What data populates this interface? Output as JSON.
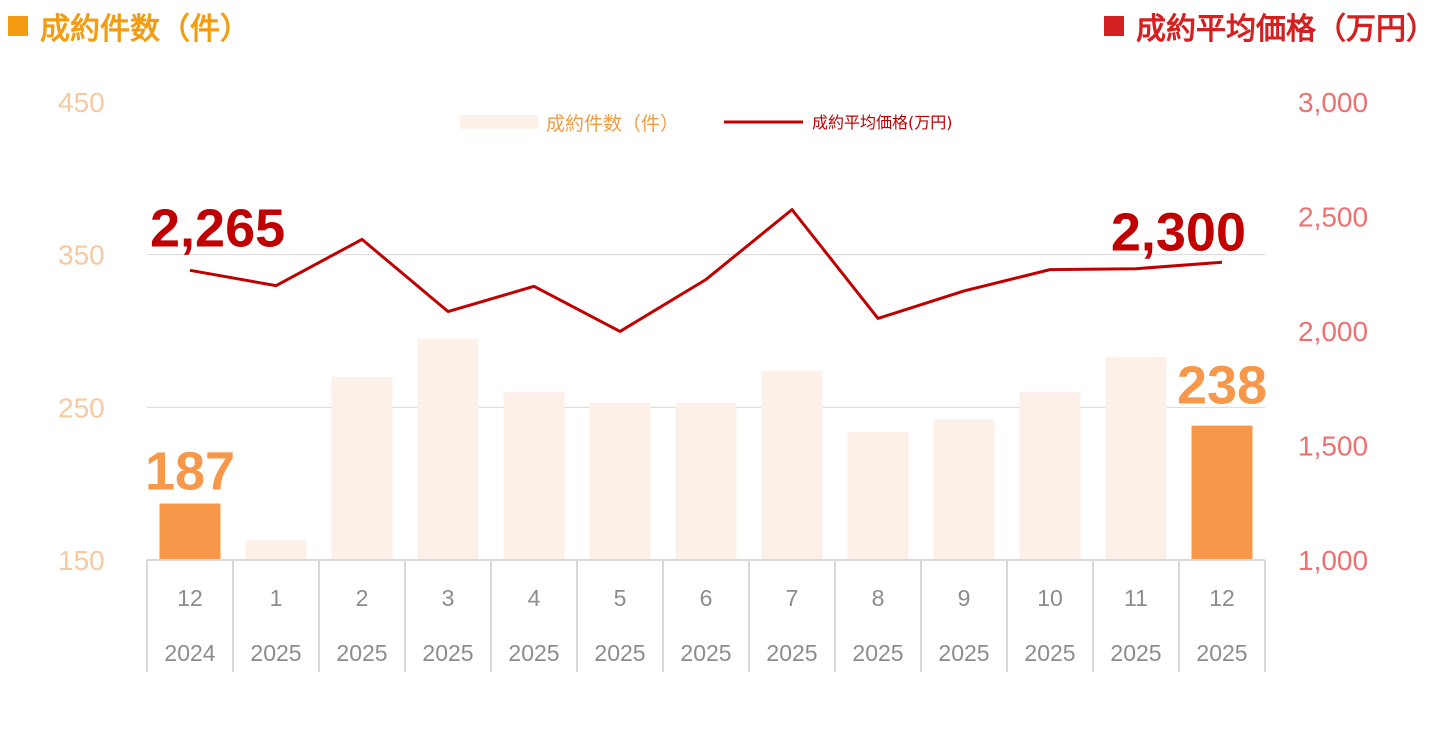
{
  "header": {
    "left_title": "成約件数（件）",
    "right_title": "成約平均価格（万円）"
  },
  "colors": {
    "left_header": "#f39c12",
    "right_header": "#d42020",
    "bar_normal": "#fcf0e8",
    "bar_highlight": "#f7974a",
    "line": "#c00000",
    "left_axis_text": "#f8c9a0",
    "right_axis_text": "#f07070",
    "category_text": "#8c8c8c",
    "grid": "#d9d9d9",
    "legend_bar_text": "#f39c40",
    "legend_line_text": "#c00000"
  },
  "chart_data": {
    "type": "bar",
    "categories": [
      [
        "12",
        "2024"
      ],
      [
        "1",
        "2025"
      ],
      [
        "2",
        "2025"
      ],
      [
        "3",
        "2025"
      ],
      [
        "4",
        "2025"
      ],
      [
        "5",
        "2025"
      ],
      [
        "6",
        "2025"
      ],
      [
        "7",
        "2025"
      ],
      [
        "8",
        "2025"
      ],
      [
        "9",
        "2025"
      ],
      [
        "10",
        "2025"
      ],
      [
        "11",
        "2025"
      ],
      [
        "12",
        "2025"
      ]
    ],
    "series": [
      {
        "name": "成約件数（件）",
        "type": "bar",
        "axis": "left",
        "values": [
          187,
          163,
          270,
          295,
          260,
          253,
          253,
          274,
          234,
          242,
          260,
          283,
          238
        ],
        "highlight_indices": [
          0,
          12
        ]
      },
      {
        "name": "成約平均価格(万円)",
        "type": "line",
        "axis": "right",
        "values": [
          2265,
          2198,
          2400,
          2085,
          2195,
          1998,
          2225,
          2530,
          2055,
          2175,
          2268,
          2272,
          2300
        ]
      }
    ],
    "left_axis": {
      "ylim": [
        150,
        450
      ],
      "ticks": [
        "150",
        "250",
        "350",
        "450"
      ]
    },
    "right_axis": {
      "ylim": [
        1000,
        3000
      ],
      "ticks": [
        "1,000",
        "1,500",
        "2,000",
        "2,500",
        "3,000"
      ]
    },
    "data_labels": {
      "bar_first": "187",
      "bar_last": "238",
      "line_first": "2,265",
      "line_last": "2,300"
    },
    "grid": true,
    "legend_position": "top-center"
  }
}
